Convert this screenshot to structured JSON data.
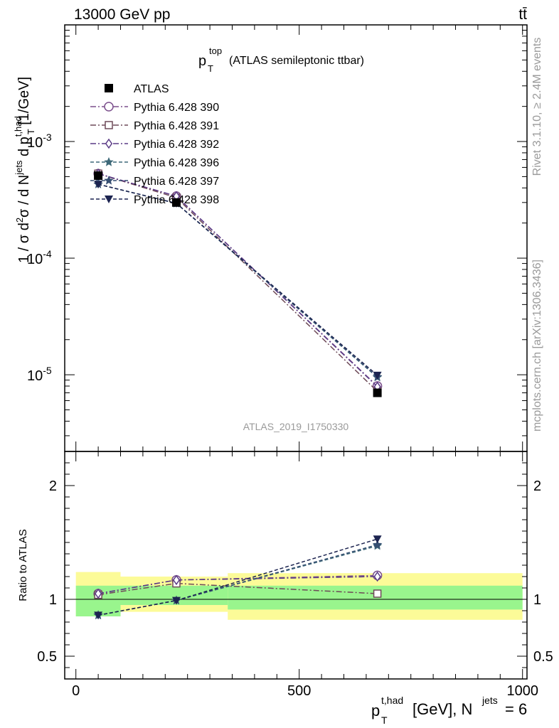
{
  "header": {
    "energy_label": "13000 GeV pp",
    "process_label": "tt̄"
  },
  "side_labels": {
    "rivet": "Rivet 3.1.10, ≥ 2.4M events",
    "mcplots": "mcplots.cern.ch [arXiv:1306.3436]"
  },
  "chart_data": [
    {
      "panel": "main",
      "type": "scatter",
      "title_main": "p",
      "title_sup": "top",
      "title_sub": "T",
      "title_rest": "(ATLAS semileptonic ttbar)",
      "watermark": "ATLAS_2019_I1750330",
      "ylabel": "1 / σ d²σ / d Nʲᵉᵗˢ d pₜᵗ·ʰᵃᵈ [1/GeV]",
      "yscale": "log",
      "ylim": [
        2.2e-06,
        0.01
      ],
      "yticks": [
        {
          "value": 0.001,
          "base": "10",
          "exp": "-3"
        },
        {
          "value": 0.0001,
          "base": "10",
          "exp": "-4"
        },
        {
          "value": 1e-05,
          "base": "10",
          "exp": "-5"
        }
      ],
      "xlim": [
        -25,
        1010
      ],
      "legend_position": "top-left",
      "series": [
        {
          "name": "ATLAS",
          "marker": "square-filled",
          "color": "#000000",
          "line": "none",
          "x": [
            50,
            225,
            675
          ],
          "y": [
            0.00051,
            0.0003,
            7e-06
          ]
        },
        {
          "name": "Pythia 6.428 390",
          "marker": "circle-open",
          "color": "#7b4f8c",
          "line": "dashdot",
          "x": [
            50,
            225,
            675
          ],
          "y": [
            0.00053,
            0.00034,
            8e-06
          ]
        },
        {
          "name": "Pythia 6.428 391",
          "marker": "square-open",
          "color": "#6e4a58",
          "line": "dashdot",
          "x": [
            50,
            225,
            675
          ],
          "y": [
            0.00053,
            0.00033,
            7.2e-06
          ]
        },
        {
          "name": "Pythia 6.428 392",
          "marker": "diamond-open",
          "color": "#5a3a86",
          "line": "dashdot",
          "x": [
            50,
            225,
            675
          ],
          "y": [
            0.00053,
            0.00034,
            7.9e-06
          ]
        },
        {
          "name": "Pythia 6.428 396",
          "marker": "star",
          "color": "#3d6878",
          "line": "dashed",
          "x": [
            50,
            225,
            675
          ],
          "y": [
            0.00043,
            0.000295,
            9.5e-06
          ]
        },
        {
          "name": "Pythia 6.428 397",
          "marker": "star",
          "color": "#364f72",
          "line": "dashed",
          "x": [
            50,
            225,
            675
          ],
          "y": [
            0.00043,
            0.000295,
            9.6e-06
          ]
        },
        {
          "name": "Pythia 6.428 398",
          "marker": "triangle-down-filled",
          "color": "#1c2450",
          "line": "dashed",
          "x": [
            50,
            225,
            675
          ],
          "y": [
            0.00043,
            0.000295,
            9.9e-06
          ]
        }
      ]
    },
    {
      "panel": "ratio",
      "type": "scatter",
      "ylabel": "Ratio to ATLAS",
      "xlabel_main": "p",
      "xlabel_sup": "t,had",
      "xlabel_sub": "T",
      "xlabel_rest": "[GeV], N",
      "xlabel_sup2": "jets",
      "xlabel_end": "= 6",
      "ylim": [
        0.3,
        2.3
      ],
      "yticks": [
        "0.5",
        "1",
        "2"
      ],
      "xlim": [
        -25,
        1010
      ],
      "xticks": [
        "0",
        "500",
        "1000"
      ],
      "bands": [
        {
          "x": [
            0,
            100
          ],
          "inner": [
            0.85,
            1.12
          ],
          "outer": [
            0.85,
            1.24
          ]
        },
        {
          "x": [
            100,
            340
          ],
          "inner": [
            0.95,
            1.12
          ],
          "outer": [
            0.89,
            1.2
          ]
        },
        {
          "x": [
            340,
            1000
          ],
          "inner": [
            0.91,
            1.12
          ],
          "outer": [
            0.82,
            1.23
          ]
        }
      ],
      "band_colors": {
        "inner": "#99f58d",
        "outer": "#fcfb98"
      },
      "series": [
        {
          "name": "Pythia 6.428 390",
          "x": [
            50,
            225,
            675
          ],
          "y": [
            1.05,
            1.17,
            1.21
          ]
        },
        {
          "name": "Pythia 6.428 391",
          "x": [
            50,
            225,
            675
          ],
          "y": [
            1.04,
            1.14,
            1.05
          ]
        },
        {
          "name": "Pythia 6.428 392",
          "x": [
            50,
            225,
            675
          ],
          "y": [
            1.05,
            1.17,
            1.2
          ]
        },
        {
          "name": "Pythia 6.428 396",
          "x": [
            50,
            225,
            675
          ],
          "y": [
            0.86,
            0.99,
            1.47
          ]
        },
        {
          "name": "Pythia 6.428 397",
          "x": [
            50,
            225,
            675
          ],
          "y": [
            0.86,
            0.99,
            1.48
          ]
        },
        {
          "name": "Pythia 6.428 398",
          "x": [
            50,
            225,
            675
          ],
          "y": [
            0.86,
            0.99,
            1.53
          ]
        }
      ]
    }
  ]
}
